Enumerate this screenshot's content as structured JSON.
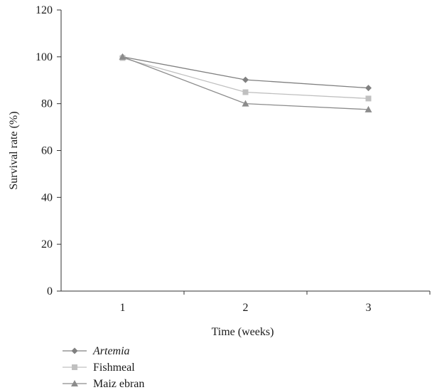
{
  "chart_data": {
    "type": "line",
    "title": "",
    "xlabel": "Time (weeks)",
    "ylabel": "Survival rate (%)",
    "x": [
      1,
      2,
      3
    ],
    "x_tick_labels": [
      "1",
      "2",
      "3"
    ],
    "ylim": [
      0,
      120
    ],
    "y_ticks": [
      0,
      20,
      40,
      60,
      80,
      100,
      120
    ],
    "y_tick_labels": [
      "0",
      "20",
      "40",
      "60",
      "80",
      "100",
      "120"
    ],
    "grid": false,
    "legend_position": "bottom-left",
    "series": [
      {
        "name": "Artemia",
        "italic": true,
        "marker": "diamond",
        "color": "#808080",
        "values": [
          100,
          90.2,
          86.7
        ]
      },
      {
        "name": "Fishmeal",
        "italic": false,
        "marker": "square",
        "color": "#c0c0c0",
        "values": [
          99.5,
          84.9,
          82.2
        ]
      },
      {
        "name": "Maiz ebran",
        "italic": false,
        "marker": "triangle",
        "color": "#8c8c8c",
        "values": [
          100,
          80.0,
          77.5
        ]
      }
    ]
  }
}
